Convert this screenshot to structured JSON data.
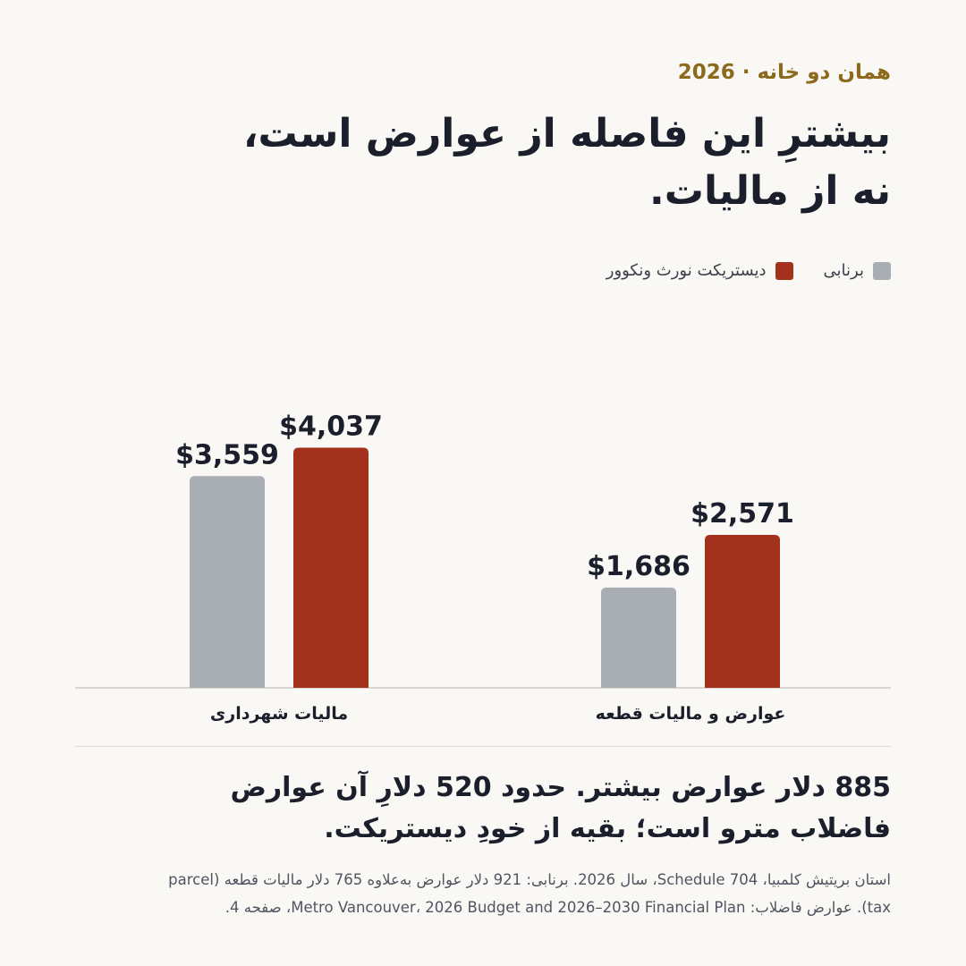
{
  "eyebrow": "همان دو خانه · 2026",
  "headline": {
    "line1": "بیشترِ این فاصله از عوارض است،",
    "line2": "نه از مالیات."
  },
  "colors": {
    "burnaby": "#a9aeb4",
    "north_vancouver": "#a3321c",
    "axis": "#d9d6d0",
    "text": "#1a1f2b",
    "accent": "#8c6a1c"
  },
  "chart_data": {
    "type": "bar",
    "categories": [
      "عوارض و مالیات قطعه",
      "مالیات شهرداری"
    ],
    "series": [
      {
        "name": "برنابی",
        "color": "#a9aeb4",
        "values": [
          1686,
          3559
        ],
        "labels": [
          "$1,686",
          "$3,559"
        ]
      },
      {
        "name": "دیستریکت نورث ونکوور",
        "color": "#a3321c",
        "values": [
          2571,
          4037
        ],
        "labels": [
          "$2,571",
          "$4,037"
        ]
      }
    ],
    "ylim": [
      0,
      4300
    ],
    "grid": false,
    "legend": "top-right"
  },
  "summary": {
    "line1": "885 دلار عوارض بیشتر. حدود 520 دلارِ آن عوارض",
    "line2": "فاضلاب مترو است؛ بقیه از خودِ دیستریکت."
  },
  "source": {
    "line1": "استان بریتیش کلمبیا، Schedule 704، سال 2026. برنابی: 921 دلار عوارض به‌علاوه 765 دلار مالیات قطعه (parcel",
    "line2": "tax). عوارض فاضلاب: Metro Vancouver، 2026 Budget and 2026–2030 Financial Plan، صفحه 4."
  }
}
